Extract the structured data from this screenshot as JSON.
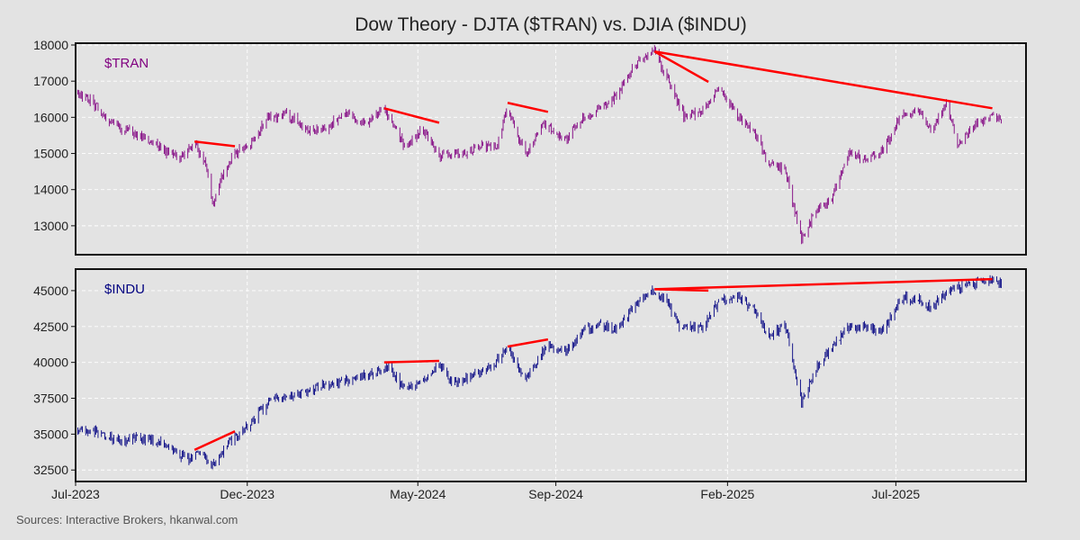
{
  "title": "Dow Theory - DJTA ($TRAN) vs. DJIA ($INDU)",
  "source": "Sources: Interactive Brokers, hkanwal.com",
  "colors": {
    "background": "#e3e3e3",
    "tran": "#800080",
    "indu": "#000080",
    "divergence": "#ff0000",
    "grid": "#ffffff",
    "frame": "#111111"
  },
  "chart_data": [
    {
      "type": "line",
      "label": "$TRAN",
      "x_range": [
        "2023-07-01",
        "2025-10-25"
      ],
      "ylim": [
        12200,
        18050
      ],
      "yticks": [
        13000,
        14000,
        15000,
        16000,
        17000,
        18000
      ],
      "ytick_labels": [
        "13000",
        "14000",
        "15000",
        "16000",
        "17000",
        "18000"
      ],
      "grid": true,
      "points": [
        [
          "2023-07-01",
          16750
        ],
        [
          "2023-07-20",
          16300
        ],
        [
          "2023-08-05",
          15750
        ],
        [
          "2023-08-20",
          15600
        ],
        [
          "2023-09-05",
          15350
        ],
        [
          "2023-09-20",
          15050
        ],
        [
          "2023-10-05",
          14900
        ],
        [
          "2023-10-15",
          15300
        ],
        [
          "2023-10-25",
          14700
        ],
        [
          "2023-10-31",
          13650
        ],
        [
          "2023-11-10",
          14450
        ],
        [
          "2023-11-20",
          15000
        ],
        [
          "2023-12-05",
          15300
        ],
        [
          "2023-12-20",
          16000
        ],
        [
          "2024-01-05",
          16100
        ],
        [
          "2024-01-25",
          15600
        ],
        [
          "2024-02-10",
          15700
        ],
        [
          "2024-02-25",
          16150
        ],
        [
          "2024-03-15",
          15800
        ],
        [
          "2024-04-01",
          16250
        ],
        [
          "2024-04-20",
          15150
        ],
        [
          "2024-05-05",
          15700
        ],
        [
          "2024-05-20",
          14950
        ],
        [
          "2024-06-10",
          15000
        ],
        [
          "2024-06-25",
          15200
        ],
        [
          "2024-07-10",
          15200
        ],
        [
          "2024-07-20",
          16300
        ],
        [
          "2024-08-05",
          14950
        ],
        [
          "2024-08-20",
          15800
        ],
        [
          "2024-09-10",
          15400
        ],
        [
          "2024-09-25",
          16000
        ],
        [
          "2024-10-10",
          16200
        ],
        [
          "2024-10-25",
          16600
        ],
        [
          "2024-11-01",
          17000
        ],
        [
          "2024-11-15",
          17600
        ],
        [
          "2024-11-28",
          17850
        ],
        [
          "2024-12-10",
          17000
        ],
        [
          "2024-12-25",
          16000
        ],
        [
          "2025-01-10",
          16200
        ],
        [
          "2025-01-25",
          16850
        ],
        [
          "2025-02-10",
          16000
        ],
        [
          "2025-02-25",
          15600
        ],
        [
          "2025-03-10",
          14700
        ],
        [
          "2025-03-25",
          14500
        ],
        [
          "2025-04-08",
          12600
        ],
        [
          "2025-04-20",
          13400
        ],
        [
          "2025-05-05",
          13800
        ],
        [
          "2025-05-20",
          15050
        ],
        [
          "2025-06-05",
          14800
        ],
        [
          "2025-06-20",
          15100
        ],
        [
          "2025-07-05",
          16000
        ],
        [
          "2025-07-20",
          16200
        ],
        [
          "2025-08-01",
          15600
        ],
        [
          "2025-08-15",
          16400
        ],
        [
          "2025-08-25",
          15300
        ],
        [
          "2025-09-10",
          15800
        ],
        [
          "2025-09-25",
          16100
        ],
        [
          "2025-10-05",
          15900
        ]
      ],
      "divergences": [
        {
          "x1": "2023-10-15",
          "y1": 15330,
          "x2": "2023-11-20",
          "y2": 15200
        },
        {
          "x1": "2024-04-01",
          "y1": 16250,
          "x2": "2024-05-20",
          "y2": 15850
        },
        {
          "x1": "2024-07-20",
          "y1": 16400,
          "x2": "2024-08-25",
          "y2": 16150
        },
        {
          "x1": "2024-11-28",
          "y1": 17820,
          "x2": "2025-01-15",
          "y2": 16980
        },
        {
          "x1": "2024-11-28",
          "y1": 17820,
          "x2": "2025-09-25",
          "y2": 16250
        }
      ]
    },
    {
      "type": "line",
      "label": "$INDU",
      "x_range": [
        "2023-07-01",
        "2025-10-25"
      ],
      "ylim": [
        31700,
        46500
      ],
      "yticks": [
        32500,
        35000,
        37500,
        40000,
        42500,
        45000
      ],
      "ytick_labels": [
        "32500",
        "35000",
        "37500",
        "40000",
        "42500",
        "45000"
      ],
      "grid": true,
      "points": [
        [
          "2023-07-01",
          35300
        ],
        [
          "2023-07-20",
          35200
        ],
        [
          "2023-08-10",
          34500
        ],
        [
          "2023-08-25",
          34700
        ],
        [
          "2023-09-10",
          34600
        ],
        [
          "2023-09-25",
          33900
        ],
        [
          "2023-10-10",
          33200
        ],
        [
          "2023-10-20",
          33800
        ],
        [
          "2023-10-31",
          32800
        ],
        [
          "2023-11-15",
          34500
        ],
        [
          "2023-12-01",
          35500
        ],
        [
          "2023-12-20",
          37300
        ],
        [
          "2024-01-10",
          37600
        ],
        [
          "2024-02-01",
          38300
        ],
        [
          "2024-03-01",
          38800
        ],
        [
          "2024-03-25",
          39300
        ],
        [
          "2024-04-05",
          39700
        ],
        [
          "2024-04-20",
          38000
        ],
        [
          "2024-05-05",
          38700
        ],
        [
          "2024-05-20",
          40000
        ],
        [
          "2024-06-01",
          38600
        ],
        [
          "2024-06-20",
          39100
        ],
        [
          "2024-07-10",
          40000
        ],
        [
          "2024-07-20",
          41000
        ],
        [
          "2024-08-05",
          38800
        ],
        [
          "2024-08-25",
          41200
        ],
        [
          "2024-09-10",
          40700
        ],
        [
          "2024-09-25",
          42200
        ],
        [
          "2024-10-10",
          42600
        ],
        [
          "2024-10-25",
          42300
        ],
        [
          "2024-11-05",
          43400
        ],
        [
          "2024-11-15",
          44400
        ],
        [
          "2024-11-28",
          45000
        ],
        [
          "2024-12-10",
          44000
        ],
        [
          "2024-12-20",
          42500
        ],
        [
          "2025-01-10",
          42500
        ],
        [
          "2025-01-25",
          44300
        ],
        [
          "2025-02-10",
          44600
        ],
        [
          "2025-02-25",
          43600
        ],
        [
          "2025-03-10",
          41800
        ],
        [
          "2025-03-25",
          42500
        ],
        [
          "2025-04-08",
          37200
        ],
        [
          "2025-04-20",
          39500
        ],
        [
          "2025-05-05",
          41000
        ],
        [
          "2025-05-20",
          42400
        ],
        [
          "2025-06-05",
          42500
        ],
        [
          "2025-06-20",
          42200
        ],
        [
          "2025-07-05",
          44500
        ],
        [
          "2025-07-20",
          44400
        ],
        [
          "2025-08-01",
          43800
        ],
        [
          "2025-08-15",
          44900
        ],
        [
          "2025-08-25",
          45200
        ],
        [
          "2025-09-05",
          45400
        ],
        [
          "2025-09-20",
          45800
        ],
        [
          "2025-10-05",
          45500
        ]
      ],
      "divergences": [
        {
          "x1": "2023-10-15",
          "y1": 33900,
          "x2": "2023-11-20",
          "y2": 35200
        },
        {
          "x1": "2024-04-01",
          "y1": 40000,
          "x2": "2024-05-20",
          "y2": 40100
        },
        {
          "x1": "2024-07-20",
          "y1": 41100,
          "x2": "2024-08-25",
          "y2": 41600
        },
        {
          "x1": "2024-11-28",
          "y1": 45100,
          "x2": "2025-01-15",
          "y2": 45000
        },
        {
          "x1": "2024-11-28",
          "y1": 45100,
          "x2": "2025-09-25",
          "y2": 45800
        }
      ]
    }
  ],
  "xaxis": {
    "ticks": [
      "2023-07-01",
      "2023-12-01",
      "2024-05-01",
      "2024-09-01",
      "2025-02-01",
      "2025-07-01"
    ],
    "labels": [
      "Jul-2023",
      "Dec-2023",
      "May-2024",
      "Sep-2024",
      "Feb-2025",
      "Jul-2025"
    ]
  }
}
